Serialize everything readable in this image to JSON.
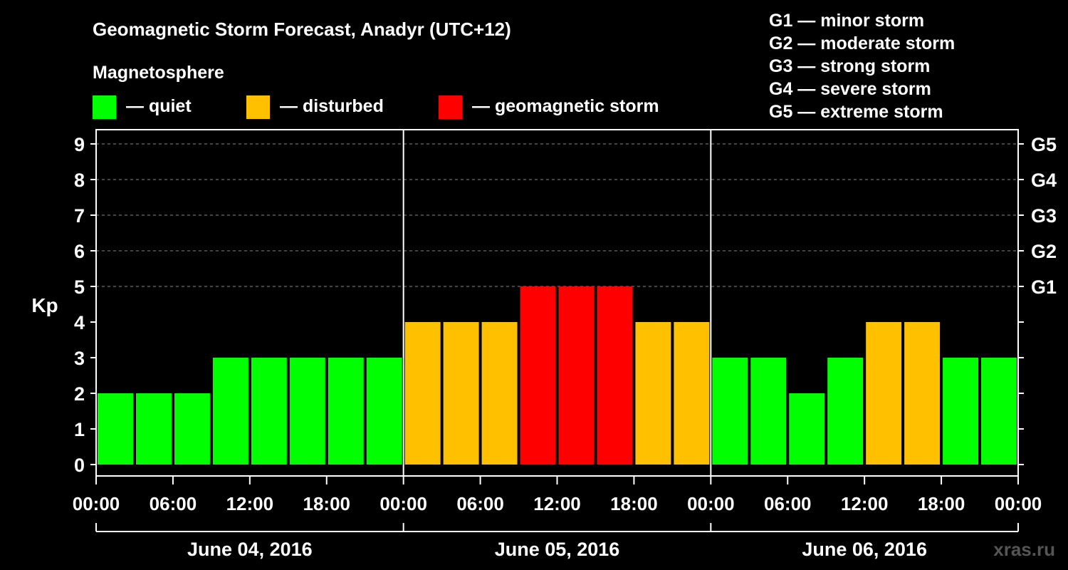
{
  "chart_data": {
    "type": "bar",
    "title": "Geomagnetic Storm Forecast, Anadyr (UTC+12)",
    "ylabel": "Kp",
    "ylim": [
      0,
      9
    ],
    "yticks": [
      "0",
      "1",
      "2",
      "3",
      "4",
      "5",
      "6",
      "7",
      "8",
      "9"
    ],
    "right_axis_labels": [
      {
        "kp": 5,
        "label": "G1"
      },
      {
        "kp": 6,
        "label": "G2"
      },
      {
        "kp": 7,
        "label": "G3"
      },
      {
        "kp": 8,
        "label": "G4"
      },
      {
        "kp": 9,
        "label": "G5"
      }
    ],
    "xtick_labels": [
      "00:00",
      "06:00",
      "12:00",
      "18:00",
      "00:00",
      "06:00",
      "12:00",
      "18:00",
      "00:00",
      "06:00",
      "12:00",
      "18:00",
      "00:00"
    ],
    "days": [
      "June 04, 2016",
      "June 05, 2016",
      "June 06, 2016"
    ],
    "interval_hours": 3,
    "values": [
      2,
      2,
      2,
      3,
      3,
      3,
      3,
      3,
      4,
      4,
      4,
      5,
      5,
      5,
      4,
      4,
      3,
      3,
      2,
      3,
      4,
      4,
      3,
      3
    ],
    "thresholds": {
      "disturbed": 4,
      "storm": 5
    },
    "legend": {
      "title": "Magnetosphere",
      "items": [
        {
          "key": "quiet",
          "label": "— quiet",
          "color": "#00ff00"
        },
        {
          "key": "disturbed",
          "label": "— disturbed",
          "color": "#ffc000"
        },
        {
          "key": "storm",
          "label": "— geomagnetic storm",
          "color": "#ff0000"
        }
      ]
    },
    "storm_scale": [
      "G1 — minor storm",
      "G2 — moderate storm",
      "G3 — strong storm",
      "G4 — severe storm",
      "G5 — extreme storm"
    ],
    "watermark": "xras.ru"
  },
  "colors": {
    "background": "#000000",
    "text": "#ffffff",
    "grid": "#888888",
    "quiet": "#00ff00",
    "disturbed": "#ffc000",
    "storm": "#ff0000"
  }
}
